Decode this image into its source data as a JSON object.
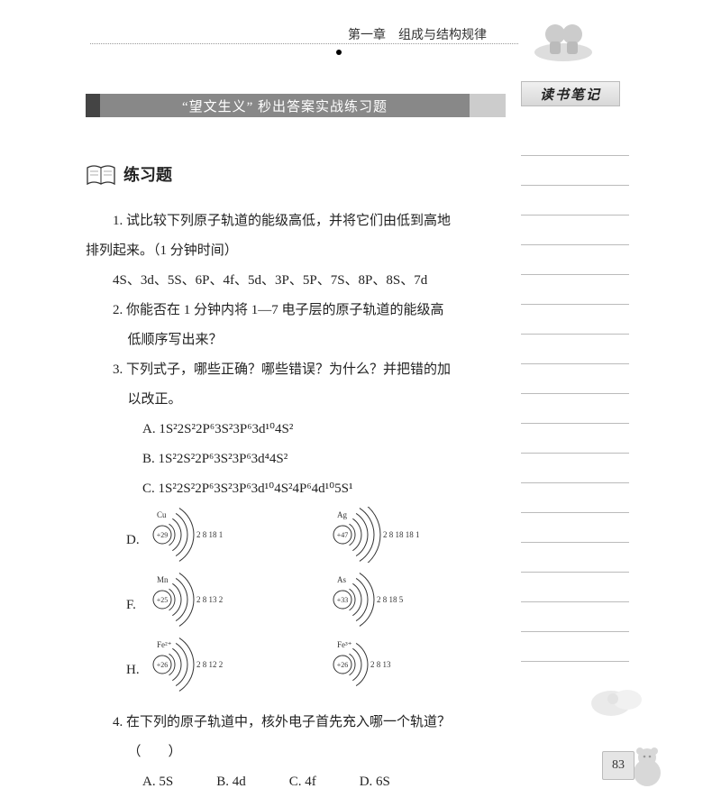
{
  "header": {
    "chapter": "第一章　组成与结构规律"
  },
  "banner": "“望文生义” 秒出答案实战练习题",
  "notes_header": "读书笔记",
  "section_title": "练习题",
  "q1": {
    "line1": "1. 试比较下列原子轨道的能级高低，并将它们由低到高地",
    "line2": "排列起来。（1 分钟时间）",
    "orbitals": "4S、3d、5S、6P、4f、5d、3P、5P、7S、8P、8S、7d"
  },
  "q2": {
    "line1": "2. 你能否在 1 分钟内将 1—7 电子层的原子轨道的能级高",
    "line2": "低顺序写出来？"
  },
  "q3": {
    "line1": "3. 下列式子，哪些正确？哪些错误？为什么？并把错的加",
    "line2": "以改正。",
    "optA": {
      "prefix": "A. ",
      "formula": "1S²2S²2P⁶3S²3P⁶3d¹⁰4S²"
    },
    "optB": {
      "prefix": "B. ",
      "formula": "1S²2S²2P⁶3S²3P⁶3d⁴4S²"
    },
    "optC": {
      "prefix": "C. ",
      "formula": "1S²2S²2P⁶3S²3P⁶3d¹⁰4S²4P⁶4d¹⁰5S¹"
    },
    "diagrams": {
      "D": {
        "left": {
          "sym": "Cu",
          "z": "+29",
          "shells": "2 8 18 1"
        },
        "right": {
          "sym": "Ag",
          "z": "+47",
          "shells": "2 8 18 18 1"
        }
      },
      "F": {
        "left": {
          "sym": "Mn",
          "z": "+25",
          "shells": "2 8 13 2"
        },
        "right": {
          "sym": "As",
          "z": "+33",
          "shells": "2 8 18 5"
        }
      },
      "H": {
        "left": {
          "sym": "Fe²⁺",
          "z": "+26",
          "shells": "2 8 12 2"
        },
        "right": {
          "sym": "Fe³⁺",
          "z": "+26",
          "shells": "2 8 13"
        }
      }
    }
  },
  "q4": {
    "line1": "4. 在下列的原子轨道中，核外电子首先充入哪一个轨道？",
    "paren": "（　　）",
    "optA": "A. 5S",
    "optB": "B. 4d",
    "optC": "C. 4f",
    "optD": "D. 6S"
  },
  "page_number": "83",
  "colors": {
    "banner_dark": "#444444",
    "banner_mid": "#888888",
    "banner_light": "#cccccc",
    "line": "#bbbbbb"
  },
  "note_line_count": 18
}
